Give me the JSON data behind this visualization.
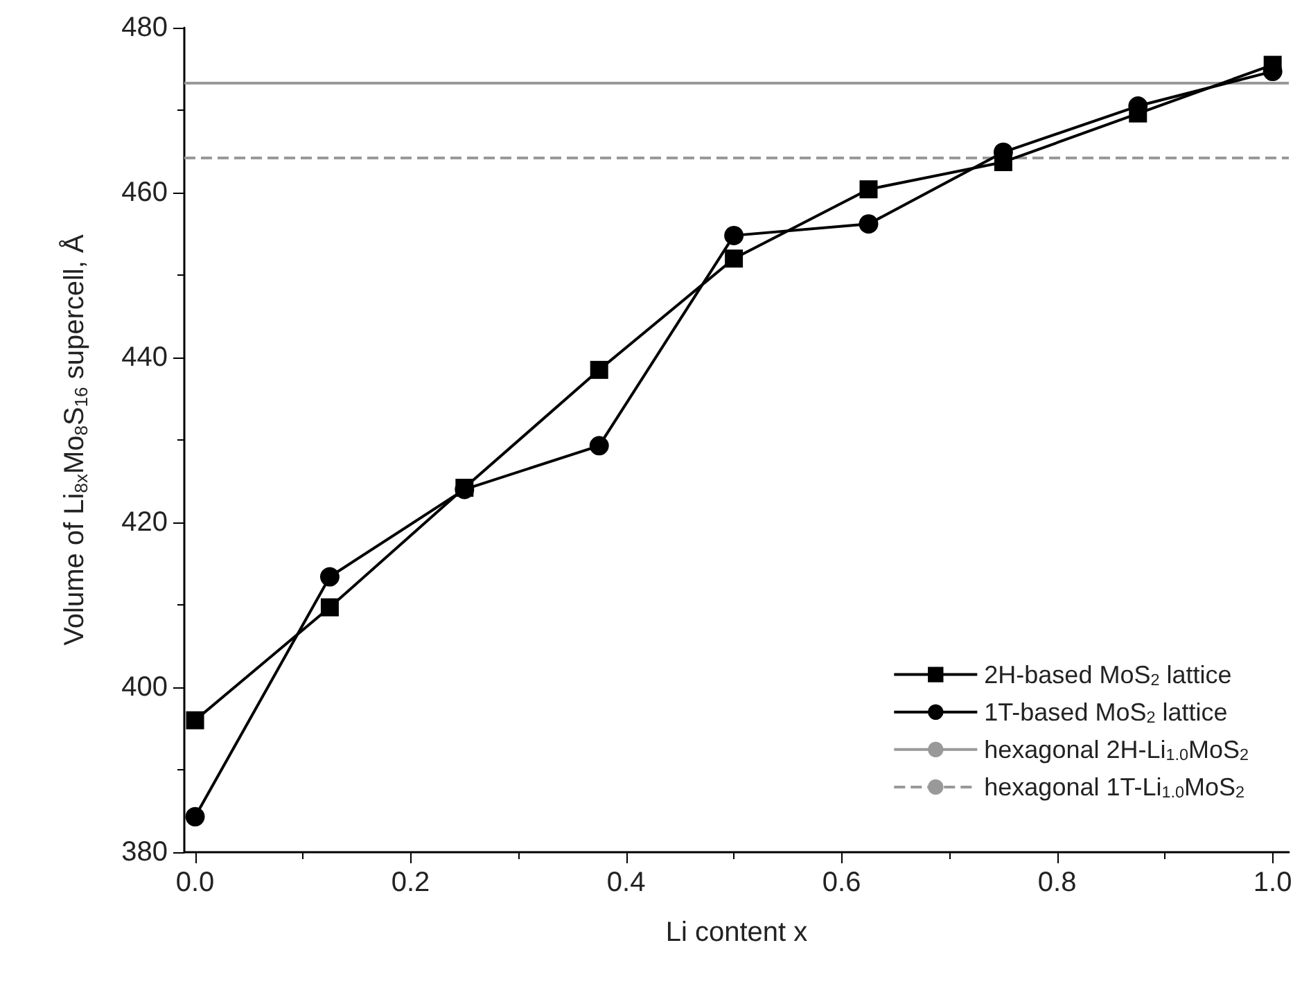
{
  "chart_data": {
    "type": "line",
    "xlabel": "Li content x",
    "ylabel": "Volume of Li$_{8x}$Mo$_{8}$S$_{16}$ supercell, Å",
    "x": [
      0,
      0.125,
      0.25,
      0.375,
      0.5,
      0.625,
      0.75,
      0.875,
      1.0
    ],
    "series": [
      {
        "name": "2H-based MoS$_{2}$ lattice",
        "color": "#000000",
        "marker": "square",
        "values": [
          396,
          409.7,
          424.2,
          438.5,
          452,
          460.4,
          463.7,
          469.6,
          475.5
        ]
      },
      {
        "name": "1T-based MoS$_{2}$ lattice",
        "color": "#000000",
        "marker": "circle",
        "values": [
          384.3,
          413.4,
          424,
          429.3,
          454.8,
          456.2,
          464.9,
          470.5,
          474.7
        ]
      }
    ],
    "ref_lines": [
      {
        "axis": "y",
        "value": 473.3,
        "label": "hexagonal 2H-Li$_{1.0}$MoS$_{2}$",
        "color": "#999999",
        "line_style": "solid"
      },
      {
        "axis": "y",
        "value": 464.3,
        "label": "hexagonal 1T-Li$_{1.0}$MoS$_{2}$",
        "color": "#999999",
        "line_style": "dashed"
      }
    ],
    "xlim": [
      -0.01,
      1.015
    ],
    "xticks": [
      {
        "value": 0,
        "label": "0.0"
      },
      {
        "value": 0.2,
        "label": "0.2"
      },
      {
        "value": 0.4,
        "label": "0.4"
      },
      {
        "value": 0.6,
        "label": "0.6"
      },
      {
        "value": 0.8,
        "label": "0.8"
      },
      {
        "value": 1,
        "label": "1.0"
      }
    ],
    "ylim": [
      380,
      480
    ],
    "yticks": [
      380,
      400,
      420,
      440,
      460,
      480
    ],
    "grid": false,
    "legend": "bottom right",
    "line_style": "solid"
  }
}
